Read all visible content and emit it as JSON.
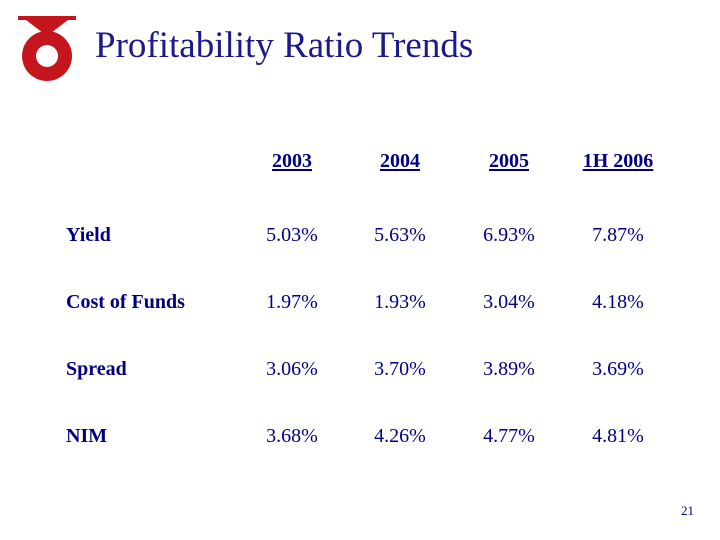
{
  "slide": {
    "title": "Profitability Ratio Trends",
    "page_number": "21"
  },
  "colors": {
    "title": "#1a1a8c",
    "text": "#000080",
    "logo": "#c4161c"
  },
  "table": {
    "columns": [
      "2003",
      "2004",
      "2005",
      "1H 2006"
    ],
    "rows": [
      {
        "label": "Yield",
        "values": [
          "5.03%",
          "5.63%",
          "6.93%",
          "7.87%"
        ]
      },
      {
        "label": "Cost of Funds",
        "values": [
          "1.97%",
          "1.93%",
          "3.04%",
          "4.18%"
        ]
      },
      {
        "label": "Spread",
        "values": [
          "3.06%",
          "3.70%",
          "3.89%",
          "3.69%"
        ]
      },
      {
        "label": "NIM",
        "values": [
          "3.68%",
          "4.26%",
          "4.77%",
          "4.81%"
        ]
      }
    ]
  }
}
